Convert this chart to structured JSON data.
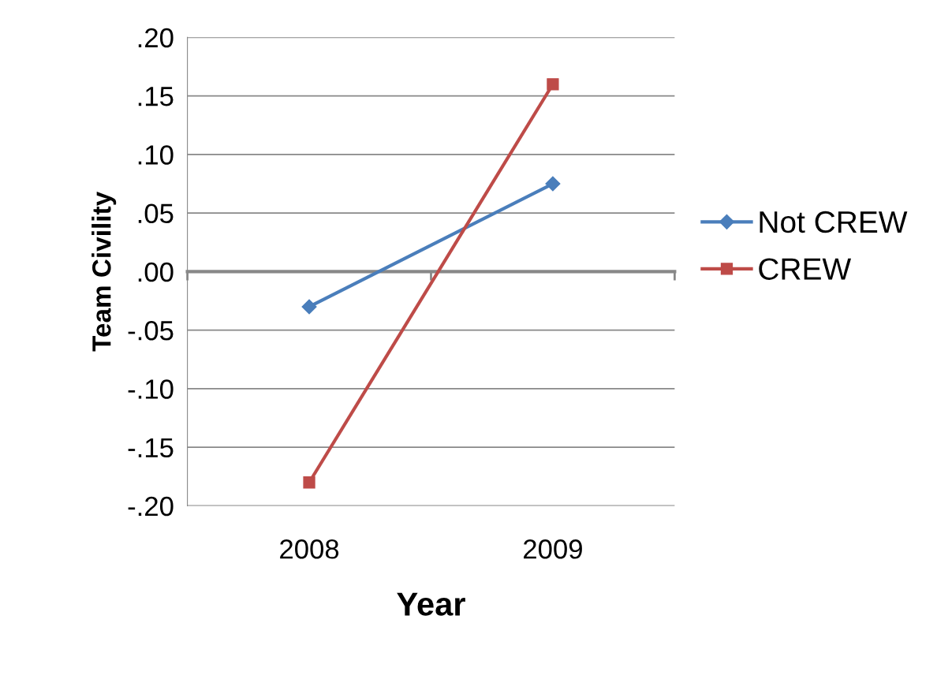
{
  "chart_data": {
    "type": "line",
    "xlabel": "Year",
    "ylabel": "Team Civility",
    "categories": [
      "2008",
      "2009"
    ],
    "series": [
      {
        "name": "Not CREW",
        "color": "#4a7ebb",
        "values": [
          -0.03,
          0.075
        ],
        "marker": "diamond"
      },
      {
        "name": "CREW",
        "color": "#be4b48",
        "values": [
          -0.18,
          0.16
        ],
        "marker": "square"
      }
    ],
    "ylim": [
      -0.2,
      0.2
    ],
    "yticks": [
      {
        "value": -0.2,
        "label": "-.20"
      },
      {
        "value": -0.15,
        "label": "-.15"
      },
      {
        "value": -0.1,
        "label": "-.10"
      },
      {
        "value": -0.05,
        "label": "-.05"
      },
      {
        "value": 0,
        "label": ".00"
      },
      {
        "value": 0.05,
        "label": ".05"
      },
      {
        "value": 0.1,
        "label": ".10"
      },
      {
        "value": 0.15,
        "label": ".15"
      },
      {
        "value": 0.2,
        "label": ".20"
      }
    ],
    "grid": "y",
    "legend": "right",
    "line_style": "solid"
  }
}
